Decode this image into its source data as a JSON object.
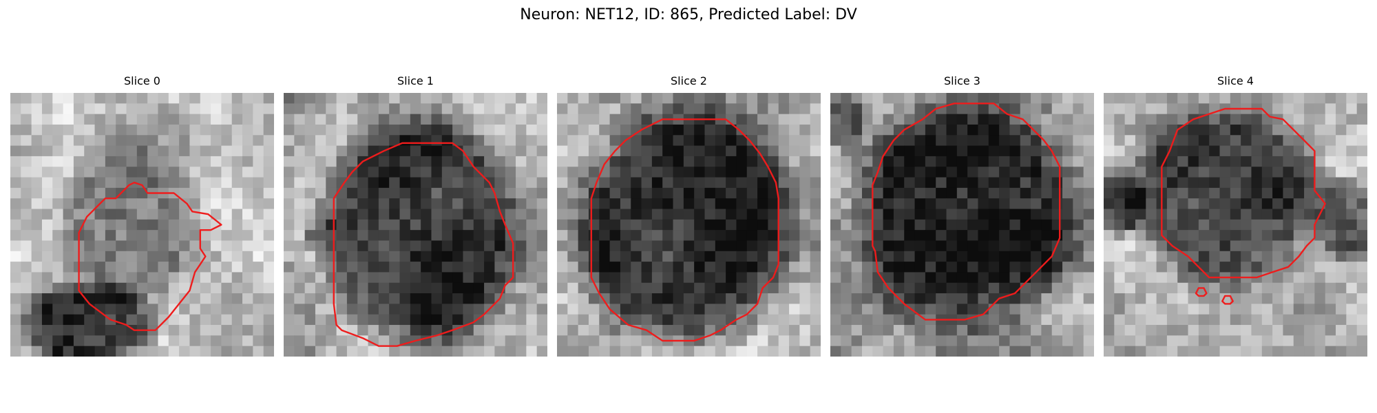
{
  "figure": {
    "title": "Neuron: NET12, ID: 865, Predicted Label: DV"
  },
  "panels": [
    {
      "title": "Slice 0"
    },
    {
      "title": "Slice 1"
    },
    {
      "title": "Slice 2"
    },
    {
      "title": "Slice 3"
    },
    {
      "title": "Slice 4"
    }
  ],
  "colors": {
    "contour": "#ee1c1c",
    "background": "#ffffff"
  }
}
